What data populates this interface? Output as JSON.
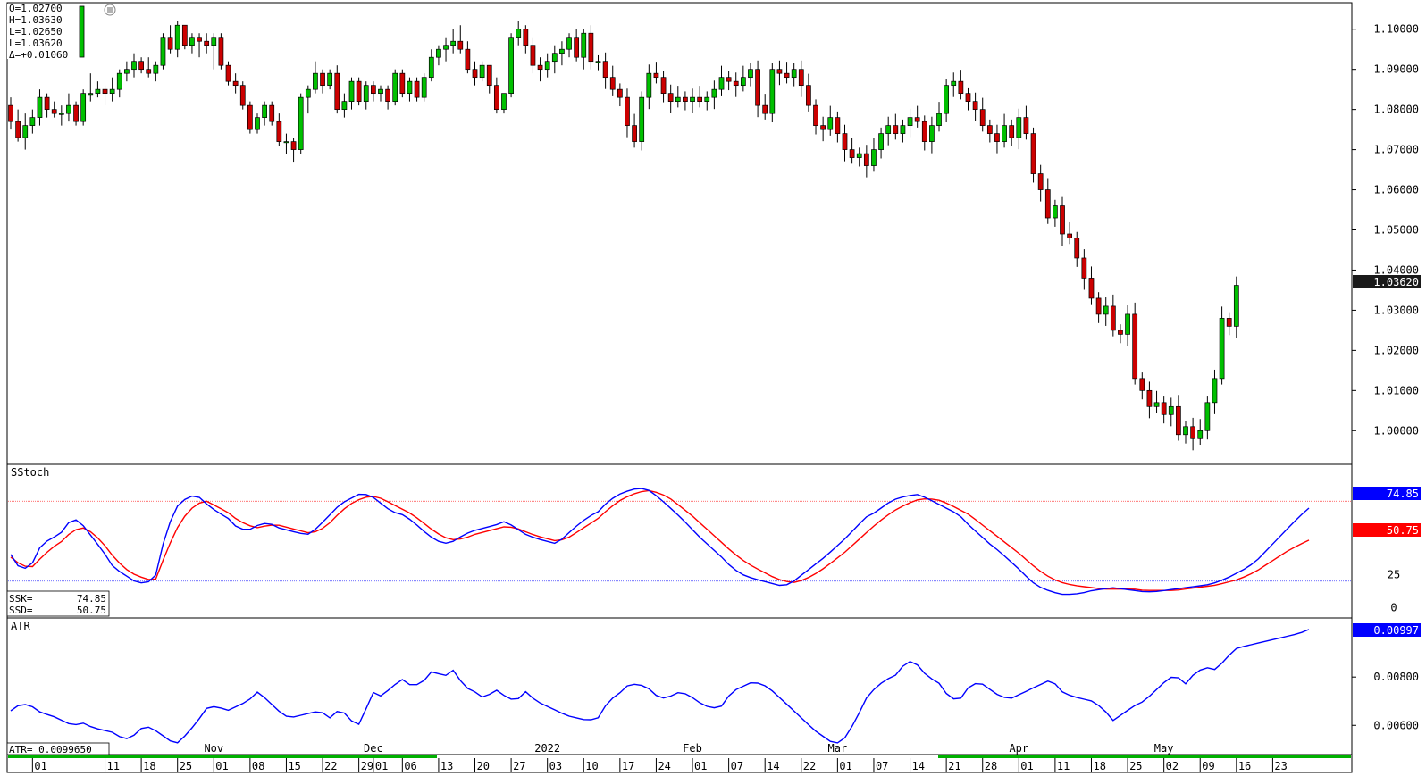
{
  "ohlc_readout": {
    "open": "O=1.02700",
    "high": "H=1.03630",
    "low": "L=1.02650",
    "last": "L=1.03620",
    "change": "Δ=+0.01060"
  },
  "colors": {
    "up": "#00c000",
    "down": "#cc0000",
    "ssk": "#0000ff",
    "ssd": "#ff0000",
    "atr": "#0000ff",
    "last_price_bg": "#1a1a1a"
  },
  "price_panel": {
    "last_price_label": "1.03620",
    "ylim": [
      0.9925,
      1.1055
    ],
    "ticks": [
      {
        "v": 1.1,
        "label": "1.10000"
      },
      {
        "v": 1.09,
        "label": "1.09000"
      },
      {
        "v": 1.08,
        "label": "1.08000"
      },
      {
        "v": 1.07,
        "label": "1.07000"
      },
      {
        "v": 1.06,
        "label": "1.06000"
      },
      {
        "v": 1.05,
        "label": "1.05000"
      },
      {
        "v": 1.04,
        "label": "1.04000"
      },
      {
        "v": 1.03,
        "label": "1.03000"
      },
      {
        "v": 1.02,
        "label": "1.02000"
      },
      {
        "v": 1.01,
        "label": "1.01000"
      },
      {
        "v": 1.0,
        "label": "1.00000"
      }
    ]
  },
  "sstoch_panel": {
    "title": "SStoch",
    "ssk_label": "SSK=",
    "ssk_value": "74.85",
    "ssd_label": "SSD=",
    "ssd_value": "50.75",
    "right_ssk": "74.85",
    "right_ssd": "50.75",
    "ylim": [
      -5,
      105
    ],
    "upper_level": 80,
    "lower_level": 20,
    "ticks": [
      {
        "v": 25,
        "label": "25"
      },
      {
        "v": 0,
        "label": "0"
      }
    ]
  },
  "atr_panel": {
    "title": "ATR",
    "readout": "ATR= 0.0099650",
    "right_value": "0.00997",
    "ylim": [
      0.0049,
      0.0103
    ],
    "ticks": [
      {
        "v": 0.008,
        "label": "0.00800"
      },
      {
        "v": 0.006,
        "label": "0.00600"
      }
    ]
  },
  "x_axis": {
    "day_labels": [
      {
        "i": 3,
        "label": "01"
      },
      {
        "i": 13,
        "label": "11"
      },
      {
        "i": 18,
        "label": "18"
      },
      {
        "i": 23,
        "label": "25"
      },
      {
        "i": 28,
        "label": "01"
      },
      {
        "i": 33,
        "label": "08"
      },
      {
        "i": 38,
        "label": "15"
      },
      {
        "i": 43,
        "label": "22"
      },
      {
        "i": 48,
        "label": "29"
      },
      {
        "i": 50,
        "label": "01"
      },
      {
        "i": 54,
        "label": "06"
      },
      {
        "i": 59,
        "label": "13"
      },
      {
        "i": 64,
        "label": "20"
      },
      {
        "i": 69,
        "label": "27"
      },
      {
        "i": 74,
        "label": "03"
      },
      {
        "i": 79,
        "label": "10"
      },
      {
        "i": 84,
        "label": "17"
      },
      {
        "i": 89,
        "label": "24"
      },
      {
        "i": 94,
        "label": "01"
      },
      {
        "i": 99,
        "label": "07"
      },
      {
        "i": 104,
        "label": "14"
      },
      {
        "i": 109,
        "label": "22"
      },
      {
        "i": 114,
        "label": "01"
      },
      {
        "i": 119,
        "label": "07"
      },
      {
        "i": 124,
        "label": "14"
      },
      {
        "i": 129,
        "label": "21"
      },
      {
        "i": 134,
        "label": "28"
      },
      {
        "i": 139,
        "label": "01"
      },
      {
        "i": 144,
        "label": "11"
      },
      {
        "i": 149,
        "label": "18"
      },
      {
        "i": 154,
        "label": "25"
      },
      {
        "i": 159,
        "label": "02"
      },
      {
        "i": 164,
        "label": "09"
      },
      {
        "i": 169,
        "label": "16"
      },
      {
        "i": 174,
        "label": "23"
      }
    ],
    "month_labels": [
      {
        "i": 28,
        "label": "Nov"
      },
      {
        "i": 50,
        "label": "Dec"
      },
      {
        "i": 74,
        "label": "2022"
      },
      {
        "i": 94,
        "label": "Feb"
      },
      {
        "i": 114,
        "label": "Mar"
      },
      {
        "i": 139,
        "label": "Apr"
      },
      {
        "i": 159,
        "label": "May"
      }
    ]
  },
  "chart_data": [
    {
      "type": "candlestick",
      "series_note": "",
      "x_start_index": 0,
      "ohlc": [
        [
          1.081,
          1.083,
          1.075,
          1.077
        ],
        [
          1.077,
          1.08,
          1.072,
          1.073
        ],
        [
          1.073,
          1.079,
          1.07,
          1.076
        ],
        [
          1.076,
          1.08,
          1.074,
          1.078
        ],
        [
          1.078,
          1.085,
          1.076,
          1.083
        ],
        [
          1.083,
          1.084,
          1.078,
          1.08
        ],
        [
          1.08,
          1.082,
          1.078,
          1.079
        ],
        [
          1.079,
          1.081,
          1.076,
          1.079
        ],
        [
          1.079,
          1.084,
          1.077,
          1.081
        ],
        [
          1.081,
          1.082,
          1.076,
          1.077
        ],
        [
          1.077,
          1.085,
          1.076,
          1.084
        ],
        [
          1.084,
          1.089,
          1.082,
          1.084
        ],
        [
          1.084,
          1.087,
          1.083,
          1.085
        ],
        [
          1.085,
          1.086,
          1.081,
          1.084
        ],
        [
          1.084,
          1.088,
          1.082,
          1.085
        ],
        [
          1.085,
          1.09,
          1.083,
          1.089
        ],
        [
          1.089,
          1.092,
          1.087,
          1.09
        ],
        [
          1.09,
          1.094,
          1.088,
          1.092
        ],
        [
          1.092,
          1.093,
          1.089,
          1.09
        ],
        [
          1.09,
          1.093,
          1.088,
          1.089
        ],
        [
          1.089,
          1.092,
          1.087,
          1.091
        ],
        [
          1.091,
          1.099,
          1.09,
          1.098
        ],
        [
          1.098,
          1.101,
          1.094,
          1.095
        ],
        [
          1.095,
          1.102,
          1.093,
          1.101
        ],
        [
          1.101,
          1.101,
          1.095,
          1.096
        ],
        [
          1.096,
          1.099,
          1.094,
          1.098
        ],
        [
          1.098,
          1.099,
          1.093,
          1.097
        ],
        [
          1.097,
          1.099,
          1.094,
          1.096
        ],
        [
          1.096,
          1.099,
          1.09,
          1.098
        ],
        [
          1.098,
          1.099,
          1.09,
          1.091
        ],
        [
          1.091,
          1.092,
          1.086,
          1.087
        ],
        [
          1.087,
          1.089,
          1.084,
          1.086
        ],
        [
          1.086,
          1.087,
          1.08,
          1.081
        ],
        [
          1.081,
          1.082,
          1.074,
          1.075
        ],
        [
          1.075,
          1.079,
          1.074,
          1.078
        ],
        [
          1.078,
          1.082,
          1.076,
          1.081
        ],
        [
          1.081,
          1.082,
          1.076,
          1.077
        ],
        [
          1.077,
          1.079,
          1.071,
          1.072
        ],
        [
          1.072,
          1.074,
          1.069,
          1.072
        ],
        [
          1.072,
          1.073,
          1.067,
          1.07
        ],
        [
          1.07,
          1.084,
          1.069,
          1.083
        ],
        [
          1.083,
          1.086,
          1.079,
          1.085
        ],
        [
          1.085,
          1.092,
          1.084,
          1.089
        ],
        [
          1.089,
          1.09,
          1.084,
          1.086
        ],
        [
          1.086,
          1.09,
          1.085,
          1.089
        ],
        [
          1.089,
          1.091,
          1.079,
          1.08
        ],
        [
          1.08,
          1.084,
          1.078,
          1.082
        ],
        [
          1.082,
          1.088,
          1.08,
          1.087
        ],
        [
          1.087,
          1.088,
          1.081,
          1.082
        ],
        [
          1.082,
          1.087,
          1.08,
          1.086
        ],
        [
          1.086,
          1.087,
          1.082,
          1.084
        ],
        [
          1.084,
          1.086,
          1.082,
          1.085
        ],
        [
          1.085,
          1.086,
          1.08,
          1.082
        ],
        [
          1.082,
          1.09,
          1.081,
          1.089
        ],
        [
          1.089,
          1.09,
          1.083,
          1.084
        ],
        [
          1.084,
          1.088,
          1.082,
          1.087
        ],
        [
          1.087,
          1.088,
          1.082,
          1.083
        ],
        [
          1.083,
          1.089,
          1.082,
          1.088
        ],
        [
          1.088,
          1.095,
          1.087,
          1.093
        ],
        [
          1.093,
          1.096,
          1.091,
          1.095
        ],
        [
          1.095,
          1.098,
          1.092,
          1.096
        ],
        [
          1.096,
          1.1,
          1.094,
          1.097
        ],
        [
          1.097,
          1.101,
          1.094,
          1.095
        ],
        [
          1.095,
          1.097,
          1.089,
          1.09
        ],
        [
          1.09,
          1.092,
          1.086,
          1.088
        ],
        [
          1.088,
          1.092,
          1.087,
          1.091
        ],
        [
          1.091,
          1.091,
          1.084,
          1.086
        ],
        [
          1.086,
          1.088,
          1.079,
          1.08
        ],
        [
          1.08,
          1.084,
          1.079,
          1.084
        ],
        [
          1.084,
          1.099,
          1.083,
          1.098
        ],
        [
          1.098,
          1.102,
          1.096,
          1.1
        ],
        [
          1.1,
          1.101,
          1.094,
          1.096
        ],
        [
          1.096,
          1.098,
          1.089,
          1.091
        ],
        [
          1.091,
          1.093,
          1.087,
          1.09
        ],
        [
          1.09,
          1.094,
          1.088,
          1.092
        ],
        [
          1.092,
          1.096,
          1.089,
          1.094
        ],
        [
          1.094,
          1.097,
          1.091,
          1.095
        ],
        [
          1.095,
          1.099,
          1.093,
          1.098
        ],
        [
          1.098,
          1.1,
          1.092,
          1.093
        ],
        [
          1.093,
          1.1,
          1.09,
          1.099
        ],
        [
          1.099,
          1.101,
          1.09,
          1.092
        ]
      ]
    },
    {
      "type": "line",
      "title": "SStoch",
      "series": [
        {
          "name": "SSK",
          "values": [
            40,
            28,
            32,
            48,
            52,
            57,
            68,
            62,
            52,
            42,
            30,
            25,
            20,
            18,
            22,
            55,
            75,
            82,
            85,
            78,
            72,
            68,
            60,
            58,
            62,
            64,
            60,
            58,
            56,
            55,
            62,
            70,
            78,
            82,
            86,
            84,
            78,
            72,
            70,
            65,
            58,
            52,
            48,
            50,
            55,
            58,
            60,
            62,
            65,
            60,
            55,
            52,
            50,
            48,
            55,
            62,
            68,
            72,
            80,
            85,
            88,
            90,
            88,
            82,
            75,
            68,
            60,
            52,
            45,
            38,
            30,
            25,
            22,
            20,
            18,
            16,
            20,
            26,
            32,
            38,
            45,
            52,
            60,
            68,
            72,
            78,
            82,
            84,
            85,
            82,
            78,
            74,
            70,
            62,
            55,
            48,
            42,
            35,
            28,
            20,
            15,
            12,
            10,
            10,
            11,
            13,
            14,
            15,
            14,
            13,
            12,
            12,
            13,
            14,
            15,
            16,
            17,
            19,
            22,
            26,
            30,
            36,
            44,
            52,
            60,
            68,
            74.85
          ]
        },
        {
          "name": "SSD",
          "values": [
            38,
            32,
            30,
            38,
            45,
            50,
            58,
            60,
            56,
            48,
            38,
            30,
            25,
            22,
            20,
            40,
            58,
            70,
            78,
            80,
            76,
            72,
            66,
            62,
            60,
            62,
            62,
            60,
            58,
            56,
            58,
            64,
            72,
            78,
            82,
            84,
            82,
            78,
            74,
            70,
            64,
            58,
            53,
            51,
            52,
            55,
            57,
            59,
            61,
            60,
            57,
            54,
            52,
            50,
            52,
            57,
            62,
            67,
            74,
            80,
            84,
            87,
            88,
            86,
            82,
            76,
            70,
            63,
            56,
            49,
            42,
            36,
            31,
            27,
            23,
            20,
            19,
            21,
            25,
            30,
            36,
            42,
            49,
            56,
            63,
            69,
            74,
            78,
            81,
            82,
            81,
            78,
            74,
            70,
            64,
            58,
            52,
            46,
            40,
            33,
            27,
            22,
            19,
            17,
            16,
            15,
            14,
            14,
            14,
            14,
            13,
            13,
            13,
            13,
            14,
            15,
            16,
            17,
            19,
            21,
            24,
            28,
            33,
            38,
            43,
            47,
            50.75
          ]
        }
      ],
      "ylim": [
        0,
        100
      ],
      "levels": [
        80,
        20
      ]
    },
    {
      "type": "line",
      "title": "ATR",
      "series": [
        {
          "name": "ATR",
          "values": [
            0.0066,
            0.0069,
            0.0068,
            0.0065,
            0.0064,
            0.0062,
            0.006,
            0.0061,
            0.0059,
            0.0058,
            0.0057,
            0.0054,
            0.0056,
            0.006,
            0.0058,
            0.0055,
            0.0052,
            0.0056,
            0.0061,
            0.0067,
            0.0068,
            0.0066,
            0.0068,
            0.007,
            0.0074,
            0.007,
            0.0066,
            0.0063,
            0.0064,
            0.0065,
            0.0066,
            0.0063,
            0.0067,
            0.0062,
            0.006,
            0.0074,
            0.0072,
            0.0076,
            0.0079,
            0.0076,
            0.0078,
            0.0083,
            0.008,
            0.0083,
            0.0076,
            0.0074,
            0.0071,
            0.0075,
            0.0072,
            0.007,
            0.0074,
            0.007,
            0.0068,
            0.0066,
            0.0064,
            0.0063,
            0.0062,
            0.0063,
            0.007,
            0.0073,
            0.0077,
            0.0077,
            0.0075,
            0.0071,
            0.0072,
            0.0074,
            0.0072,
            0.0069,
            0.0067,
            0.0068,
            0.0074,
            0.0076,
            0.0078,
            0.0077,
            0.0074,
            0.007,
            0.0066,
            0.0062,
            0.0058,
            0.0055,
            0.0052,
            0.0055,
            0.0062,
            0.0071,
            0.0076,
            0.0079,
            0.0081,
            0.0087,
            0.0085,
            0.008,
            0.0078,
            0.0072,
            0.007,
            0.0076,
            0.0078,
            0.0075,
            0.0072,
            0.0071,
            0.0073,
            0.0075,
            0.0077,
            0.0079,
            0.0074,
            0.0072,
            0.0071,
            0.007,
            0.0067,
            0.0062,
            0.0065,
            0.0068,
            0.007,
            0.0074,
            0.0078,
            0.0081,
            0.0077,
            0.0082,
            0.0084,
            0.0083,
            0.0088,
            0.0092,
            0.0093,
            0.0094,
            0.0095,
            0.0096,
            0.0097,
            0.0098,
            0.00997
          ]
        }
      ]
    }
  ]
}
